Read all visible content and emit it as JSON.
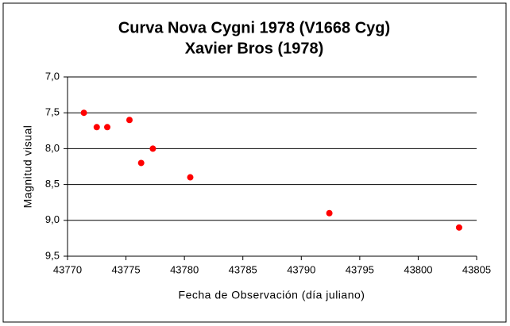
{
  "chart_data": {
    "type": "scatter",
    "title": "Curva Nova Cygni 1978 (V1668 Cyg)",
    "subtitle": "Xavier Bros (1978)",
    "x_label": "Fecha de Observación (día juliano)",
    "y_label": "Magnitud visual",
    "x": [
      43771.4,
      43772.5,
      43773.4,
      43775.3,
      43776.3,
      43777.3,
      43780.5,
      43792.4,
      43803.5
    ],
    "values": [
      7.5,
      7.7,
      7.7,
      7.6,
      8.2,
      8.0,
      8.4,
      8.9,
      9.1
    ],
    "color": "#ff0000",
    "xlim": [
      43770,
      43805
    ],
    "xticks": [
      43770,
      43775,
      43780,
      43785,
      43790,
      43795,
      43800,
      43805
    ],
    "ylim": [
      9.5,
      7.0
    ],
    "yticks": [
      {
        "value": 7.0,
        "label": "7,0"
      },
      {
        "value": 7.5,
        "label": "7,5"
      },
      {
        "value": 8.0,
        "label": "8,0"
      },
      {
        "value": 8.5,
        "label": "8,5"
      },
      {
        "value": 9.0,
        "label": "9,0"
      },
      {
        "value": 9.5,
        "label": "9,5"
      }
    ],
    "grid": true
  }
}
